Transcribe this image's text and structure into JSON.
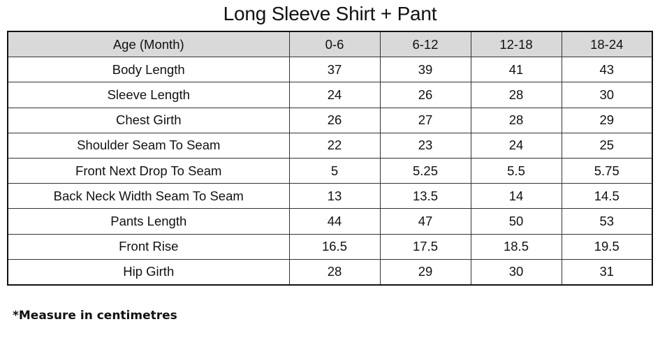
{
  "title": "Long Sleeve Shirt + Pant",
  "table": {
    "headers": [
      "Age (Month)",
      "0-6",
      "6-12",
      "12-18",
      "18-24"
    ],
    "rows": [
      [
        "Body Length",
        "37",
        "39",
        "41",
        "43"
      ],
      [
        "Sleeve Length",
        "24",
        "26",
        "28",
        "30"
      ],
      [
        "Chest Girth",
        "26",
        "27",
        "28",
        "29"
      ],
      [
        "Shoulder Seam To Seam",
        "22",
        "23",
        "24",
        "25"
      ],
      [
        "Front Next Drop To Seam",
        "5",
        "5.25",
        "5.5",
        "5.75"
      ],
      [
        "Back Neck Width Seam To Seam",
        "13",
        "13.5",
        "14",
        "14.5"
      ],
      [
        "Pants Length",
        "44",
        "47",
        "50",
        "53"
      ],
      [
        "Front Rise",
        "16.5",
        "17.5",
        "18.5",
        "19.5"
      ],
      [
        "Hip Girth",
        "28",
        "29",
        "30",
        "31"
      ]
    ]
  },
  "note": "*Measure in centimetres",
  "colors": {
    "header_bg": "#d9d9d9",
    "border": "#111111"
  }
}
